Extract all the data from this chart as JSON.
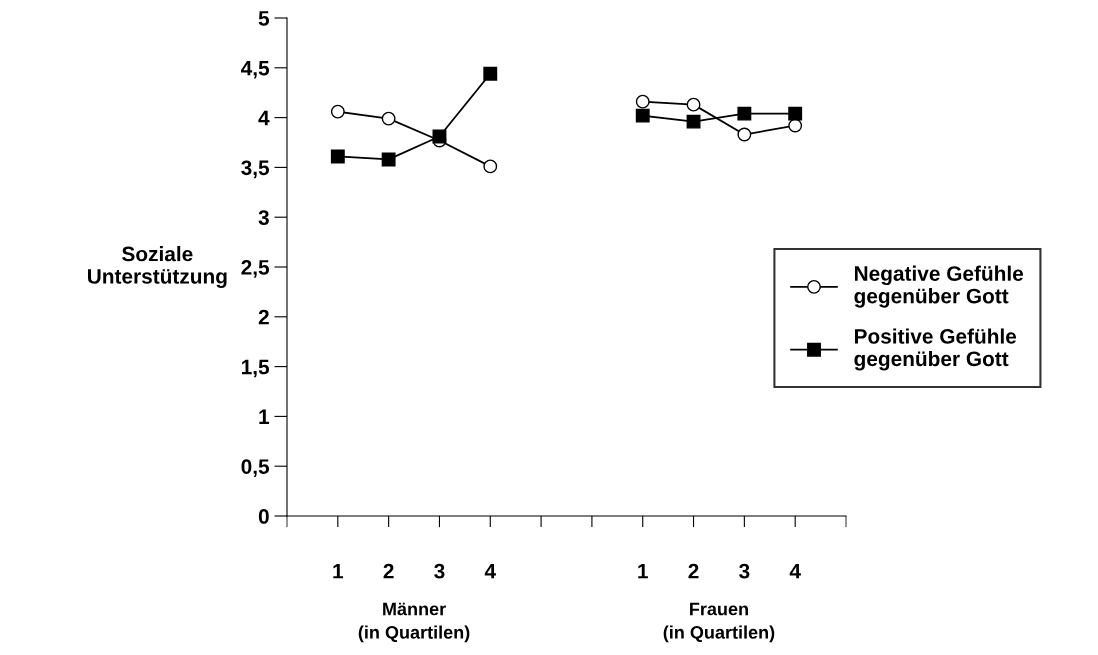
{
  "chart_data": {
    "type": "line",
    "ylabel": "Soziale\nUnterstützung",
    "categories": [
      "1",
      "2",
      "3",
      "4",
      null,
      null,
      "1",
      "2",
      "3",
      "4"
    ],
    "series": [
      {
        "name": "Negative Gefühle\ngegenüber Gott",
        "color": "#000000",
        "marker": "circle",
        "values": [
          4.06,
          3.99,
          3.77,
          3.51,
          null,
          null,
          4.16,
          4.13,
          3.83,
          3.92
        ]
      },
      {
        "name": "Positive Gefühle\ngegenüber Gott",
        "color": "#000000",
        "marker": "square",
        "values": [
          3.61,
          3.58,
          3.81,
          4.44,
          null,
          null,
          4.02,
          3.96,
          4.04,
          4.04
        ]
      }
    ],
    "annotations": [
      "Männer\n(in Quartilen)",
      "Frauen\n(in Quartilen)"
    ],
    "ylim": [
      0,
      5
    ],
    "yticks": [
      0,
      {
        "value": 0.5,
        "label": "0,5"
      },
      1,
      {
        "value": 1.5,
        "label": "1,5"
      },
      2,
      {
        "value": 2.5,
        "label": "2,5"
      },
      3,
      {
        "value": 3.5,
        "label": "3,5"
      },
      4,
      {
        "value": 4.5,
        "label": "4,5"
      },
      5
    ],
    "grid": false,
    "legend": "right",
    "line_style": "solid"
  }
}
